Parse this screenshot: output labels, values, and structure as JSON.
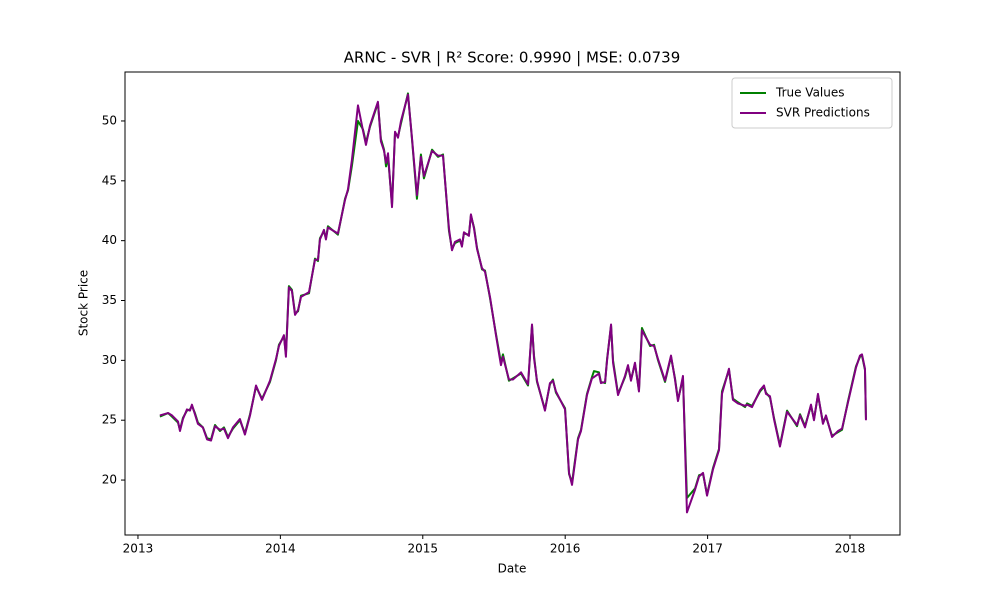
{
  "chart_data": {
    "type": "line",
    "title": "ARNC - SVR | R² Score: 0.9990 | MSE: 0.0739",
    "xlabel": "Date",
    "ylabel": "Stock Price",
    "x": [
      2013.154,
      2013.211,
      2013.239,
      2013.281,
      2013.295,
      2013.316,
      2013.344,
      2013.365,
      2013.379,
      2013.4,
      2013.421,
      2013.456,
      2013.485,
      2013.513,
      2013.541,
      2013.576,
      2013.604,
      2013.632,
      2013.667,
      2013.716,
      2013.751,
      2013.787,
      2013.829,
      2013.871,
      2013.927,
      2013.969,
      2013.99,
      2014.025,
      2014.039,
      2014.06,
      2014.081,
      2014.103,
      2014.124,
      2014.145,
      2014.201,
      2014.243,
      2014.264,
      2014.278,
      2014.306,
      2014.32,
      2014.334,
      2014.404,
      2014.454,
      2014.475,
      2014.503,
      2014.545,
      2014.58,
      2014.601,
      2014.629,
      2014.685,
      2014.706,
      2014.728,
      2014.742,
      2014.756,
      2014.784,
      2014.805,
      2014.826,
      2014.847,
      2014.896,
      2014.924,
      2014.959,
      2014.987,
      2015.008,
      2015.065,
      2015.107,
      2015.142,
      2015.184,
      2015.205,
      2015.226,
      2015.261,
      2015.275,
      2015.289,
      2015.324,
      2015.338,
      2015.36,
      2015.381,
      2015.416,
      2015.437,
      2015.472,
      2015.514,
      2015.549,
      2015.563,
      2015.605,
      2015.633,
      2015.69,
      2015.739,
      2015.767,
      2015.781,
      2015.802,
      2015.858,
      2015.893,
      2015.914,
      2015.935,
      2015.999,
      2016.027,
      2016.048,
      2016.09,
      2016.111,
      2016.153,
      2016.188,
      2016.202,
      2016.237,
      2016.251,
      2016.28,
      2016.294,
      2016.322,
      2016.336,
      2016.371,
      2016.42,
      2016.441,
      2016.462,
      2016.49,
      2016.518,
      2016.539,
      2016.596,
      2016.624,
      2016.652,
      2016.701,
      2016.743,
      2016.771,
      2016.792,
      2016.827,
      2016.855,
      2016.912,
      2016.94,
      2016.968,
      2016.996,
      2017.038,
      2017.08,
      2017.101,
      2017.15,
      2017.178,
      2017.213,
      2017.263,
      2017.277,
      2017.312,
      2017.368,
      2017.396,
      2017.41,
      2017.438,
      2017.466,
      2017.508,
      2017.558,
      2017.628,
      2017.649,
      2017.684,
      2017.726,
      2017.747,
      2017.775,
      2017.81,
      2017.831,
      2017.874,
      2017.916,
      2017.944,
      2017.986,
      2018.042,
      2018.07,
      2018.084,
      2018.105,
      2018.112
    ],
    "series": [
      {
        "name": "True Values",
        "color": "#008000",
        "values": [
          25.3,
          25.6,
          25.3,
          24.8,
          24.2,
          25.2,
          25.8,
          25.9,
          26.2,
          25.6,
          24.8,
          24.4,
          23.5,
          23.4,
          24.6,
          24.1,
          24.4,
          23.6,
          24.3,
          25.0,
          23.9,
          25.5,
          27.8,
          26.8,
          28.2,
          30.0,
          31.3,
          32.0,
          30.5,
          36.2,
          35.9,
          33.9,
          34.1,
          35.4,
          35.6,
          38.5,
          38.3,
          40.2,
          40.8,
          40.2,
          41.2,
          40.5,
          43.5,
          44.2,
          46.3,
          50.0,
          49.3,
          48.2,
          49.5,
          51.5,
          48.5,
          47.6,
          46.2,
          47.0,
          43.0,
          49.0,
          48.7,
          49.8,
          52.3,
          48.5,
          43.5,
          47.2,
          45.2,
          47.6,
          47.0,
          47.2,
          40.8,
          39.3,
          39.8,
          40.0,
          39.6,
          40.6,
          40.5,
          42.1,
          41.1,
          39.4,
          37.6,
          37.5,
          35.2,
          32.2,
          29.8,
          30.5,
          28.3,
          28.5,
          28.9,
          27.9,
          32.9,
          30.4,
          28.2,
          25.9,
          28.0,
          28.4,
          27.3,
          26.0,
          20.5,
          19.8,
          23.5,
          24.2,
          27.2,
          28.6,
          29.1,
          29.0,
          28.2,
          28.1,
          30.1,
          32.9,
          30.0,
          27.2,
          28.6,
          29.5,
          28.4,
          29.7,
          27.5,
          32.7,
          31.2,
          31.3,
          30.0,
          28.2,
          30.3,
          28.5,
          26.7,
          28.5,
          18.5,
          19.3,
          20.4,
          20.5,
          18.8,
          21.0,
          22.6,
          27.4,
          29.2,
          26.8,
          26.5,
          26.1,
          26.4,
          26.2,
          27.4,
          27.8,
          27.3,
          26.9,
          25.2,
          22.9,
          25.8,
          24.5,
          25.5,
          24.5,
          26.2,
          25.1,
          27.1,
          24.8,
          25.3,
          23.7,
          24.0,
          24.2,
          26.6,
          29.5,
          30.3,
          30.4,
          29.2,
          25.1
        ]
      },
      {
        "name": "SVR Predictions",
        "color": "#800080",
        "values": [
          25.4,
          25.6,
          25.4,
          24.9,
          24.1,
          25.1,
          25.9,
          25.8,
          26.3,
          25.5,
          24.7,
          24.4,
          23.4,
          23.3,
          24.5,
          24.2,
          24.3,
          23.5,
          24.4,
          25.1,
          23.8,
          25.4,
          27.9,
          26.7,
          28.3,
          30.1,
          31.2,
          32.1,
          30.3,
          36.1,
          35.8,
          33.8,
          34.2,
          35.3,
          35.7,
          38.4,
          38.4,
          40.1,
          40.9,
          40.1,
          41.1,
          40.6,
          43.4,
          44.3,
          46.8,
          51.3,
          49.2,
          48.0,
          49.6,
          51.6,
          48.3,
          47.5,
          46.5,
          47.3,
          42.8,
          49.1,
          48.6,
          50.0,
          52.2,
          48.6,
          43.8,
          47.0,
          45.4,
          47.5,
          47.1,
          47.1,
          41.0,
          39.2,
          39.9,
          40.1,
          39.5,
          40.7,
          40.4,
          42.2,
          41.0,
          39.3,
          37.7,
          37.4,
          35.3,
          32.1,
          29.6,
          30.3,
          28.4,
          28.4,
          29.0,
          28.0,
          33.0,
          30.2,
          28.3,
          25.8,
          28.1,
          28.3,
          27.4,
          25.9,
          20.6,
          19.6,
          23.4,
          24.1,
          27.1,
          28.5,
          28.6,
          28.9,
          28.1,
          28.2,
          30.0,
          33.0,
          29.8,
          27.1,
          28.7,
          29.6,
          28.3,
          29.8,
          27.4,
          32.5,
          31.3,
          31.2,
          30.1,
          28.3,
          30.4,
          28.4,
          26.6,
          28.7,
          17.3,
          19.2,
          20.3,
          20.6,
          18.7,
          20.9,
          22.5,
          27.2,
          29.3,
          26.7,
          26.4,
          26.2,
          26.3,
          26.1,
          27.5,
          27.9,
          27.2,
          27.0,
          25.1,
          22.8,
          25.7,
          24.6,
          25.4,
          24.4,
          26.3,
          25.0,
          27.2,
          24.7,
          25.4,
          23.6,
          24.1,
          24.3,
          26.5,
          29.4,
          30.4,
          30.5,
          29.3,
          25.0
        ]
      }
    ],
    "xlim": [
      2012.909,
      2018.351
    ],
    "xticks": [
      2013,
      2014,
      2015,
      2016,
      2017,
      2018
    ],
    "ylim": [
      15.41,
      54.09
    ],
    "yticks": [
      20,
      25,
      30,
      35,
      40,
      45,
      50
    ],
    "grid": false,
    "legend": "upper right"
  }
}
